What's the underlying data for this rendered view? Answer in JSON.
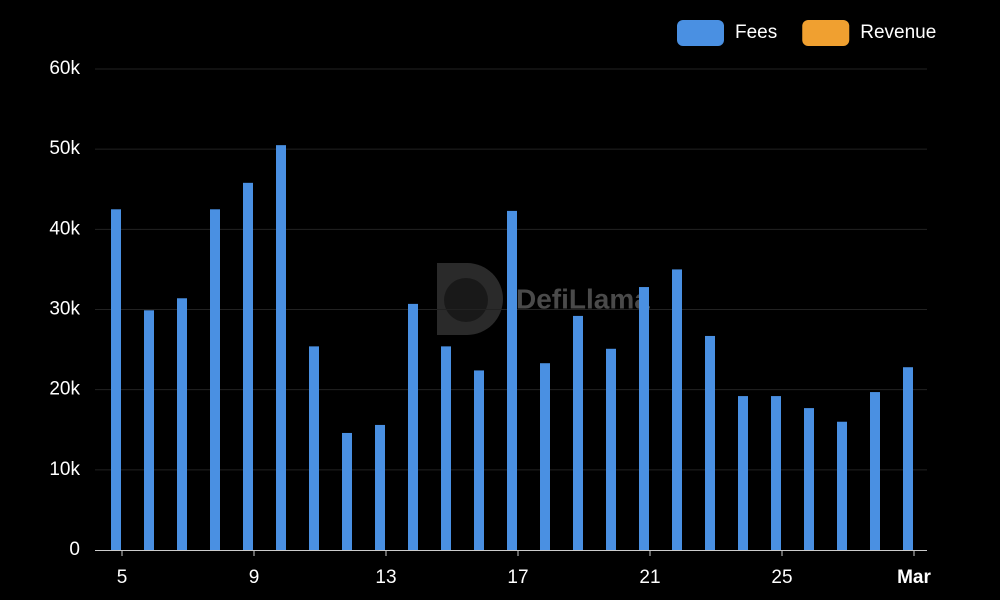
{
  "chart_data": {
    "type": "bar",
    "watermark": "DefiLlama",
    "categories": [
      "5",
      null,
      null,
      null,
      "9",
      null,
      null,
      null,
      "13",
      null,
      null,
      null,
      "17",
      null,
      null,
      null,
      "21",
      null,
      null,
      null,
      "25",
      null,
      null,
      null,
      "Mar"
    ],
    "series": [
      {
        "name": "Fees",
        "color": "#4a90e2",
        "values": [
          42500,
          29900,
          31400,
          42500,
          45800,
          50500,
          25400,
          14600,
          15600,
          30700,
          25400,
          22400,
          42300,
          23300,
          29200,
          25100,
          32800,
          35000,
          26700,
          19200,
          19200,
          17700,
          16000,
          19700,
          22800
        ]
      },
      {
        "name": "Revenue",
        "color": "#f0a030",
        "values": [
          null,
          null,
          null,
          null,
          null,
          null,
          null,
          null,
          null,
          null,
          null,
          null,
          null,
          null,
          null,
          null,
          null,
          null,
          null,
          null,
          null,
          null,
          null,
          null,
          null
        ]
      }
    ],
    "ylim": [
      0,
      60000
    ],
    "yticks": [
      0,
      {
        "value": 10000,
        "label": "10k"
      },
      {
        "value": 20000,
        "label": "20k"
      },
      {
        "value": 30000,
        "label": "30k"
      },
      {
        "value": 40000,
        "label": "40k"
      },
      {
        "value": 50000,
        "label": "50k"
      },
      {
        "value": 60000,
        "label": "60k"
      }
    ],
    "grid": true
  }
}
